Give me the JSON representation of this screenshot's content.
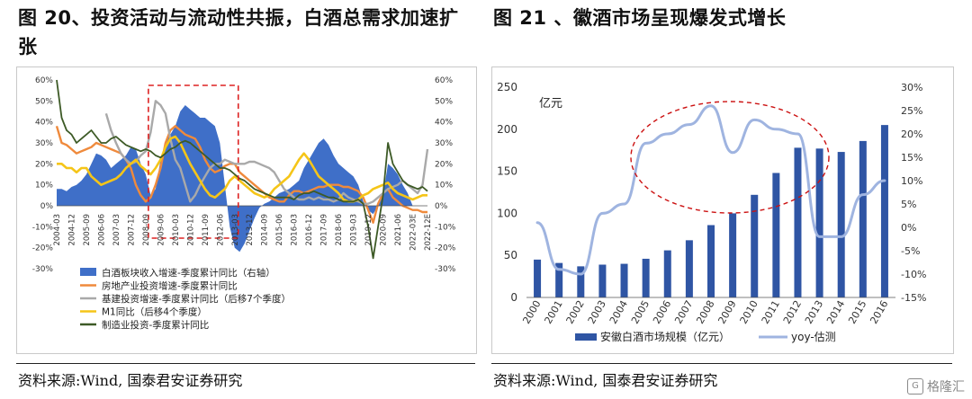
{
  "left_figure": {
    "title_line1": "图 20、投资活动与流动性共振，白酒总需求加速扩",
    "title_line2": "张",
    "source": "资料来源:Wind, 国泰君安证券研究"
  },
  "right_figure": {
    "title": "图 21 、徽酒市场呈现爆发式增长",
    "source": "资料来源:Wind, 国泰君安证券研究"
  },
  "watermark": "格隆汇",
  "chart_data": [
    {
      "type": "line",
      "left_ticks": [
        "60%",
        "50%",
        "40%",
        "30%",
        "20%",
        "10%",
        "0%",
        "-10%",
        "-20%",
        "-30%"
      ],
      "right_ticks": [
        "60%",
        "50%",
        "40%",
        "30%",
        "20%",
        "10%",
        "0%",
        "-10%",
        "-20%",
        "-30%"
      ],
      "ylim_left": [
        -0.3,
        0.6
      ],
      "ylim_right": [
        -0.3,
        0.6
      ],
      "x_labels": [
        "2004-03",
        "2004-12",
        "2005-09",
        "2006-06",
        "2007-03",
        "2007-12",
        "2008-09",
        "2009-06",
        "2010-03",
        "2010-12",
        "2011-09",
        "2012-06",
        "2013-03",
        "2013-12",
        "2014-09",
        "2015-06",
        "2016-03",
        "2016-12",
        "2017-09",
        "2018-06",
        "2019-03",
        "2019-12",
        "2020-09",
        "2021-06",
        "2022-03E",
        "2022-12E"
      ],
      "legend": [
        {
          "label": "白酒板块收入增速-季度累计同比（右轴）",
          "color": "#3f6fc8",
          "kind": "area"
        },
        {
          "label": "房地产业投资增速-季度累计同比",
          "color": "#ef8a3c",
          "kind": "line"
        },
        {
          "label": "基建投资增速-季度累计同比（后移7个季度）",
          "color": "#a9a9a9",
          "kind": "line"
        },
        {
          "label": "M1同比（后移4个季度）",
          "color": "#f5c518",
          "kind": "line"
        },
        {
          "label": "制造业投资-季度累计同比",
          "color": "#3d5a26",
          "kind": "line"
        }
      ],
      "series": [
        {
          "name": "白酒板块收入增速-季度累计同比（右轴）",
          "axis": "right",
          "values": [
            0.08,
            0.08,
            0.07,
            0.09,
            0.1,
            0.12,
            0.15,
            0.2,
            0.25,
            0.24,
            0.22,
            0.18,
            0.2,
            0.22,
            0.24,
            0.28,
            0.27,
            0.2,
            0.15,
            0.05,
            0.08,
            0.22,
            0.3,
            0.34,
            0.38,
            0.45,
            0.48,
            0.46,
            0.44,
            0.42,
            0.42,
            0.4,
            0.38,
            0.3,
            0.1,
            -0.1,
            -0.2,
            -0.22,
            -0.18,
            -0.12,
            -0.06,
            -0.01,
            0.01,
            0.02,
            0.04,
            0.06,
            0.07,
            0.08,
            0.1,
            0.12,
            0.18,
            0.22,
            0.26,
            0.3,
            0.32,
            0.29,
            0.24,
            0.2,
            0.18,
            0.16,
            0.14,
            0.1,
            0.02,
            -0.02,
            -0.04,
            0.0,
            0.05,
            0.2,
            0.18,
            0.15,
            0.1,
            0.06,
            0.0,
            0.0,
            0.0,
            0.0
          ]
        },
        {
          "name": "房地产业投资增速-季度累计同比",
          "axis": "left",
          "values": [
            0.38,
            0.3,
            0.29,
            0.27,
            0.25,
            0.26,
            0.27,
            0.28,
            0.3,
            0.29,
            0.28,
            0.27,
            0.26,
            0.25,
            0.22,
            0.18,
            0.1,
            0.05,
            0.02,
            0.04,
            0.1,
            0.18,
            0.3,
            0.36,
            0.38,
            0.36,
            0.34,
            0.33,
            0.32,
            0.28,
            0.22,
            0.18,
            0.16,
            0.17,
            0.19,
            0.2,
            0.2,
            0.16,
            0.14,
            0.12,
            0.1,
            0.08,
            0.06,
            0.04,
            0.03,
            0.02,
            0.02,
            0.05,
            0.07,
            0.07,
            0.06,
            0.07,
            0.08,
            0.09,
            0.09,
            0.1,
            0.1,
            0.1,
            0.09,
            0.09,
            0.08,
            0.07,
            0.04,
            -0.02,
            -0.08,
            0.01,
            0.06,
            0.08,
            0.04,
            0.02,
            0.0,
            -0.01,
            -0.02,
            -0.02,
            -0.03,
            -0.03
          ]
        },
        {
          "name": "基建投资增速-季度累计同比（后移7个季度）",
          "axis": "left",
          "values": [
            null,
            null,
            null,
            null,
            null,
            null,
            null,
            null,
            null,
            null,
            0.44,
            0.36,
            0.3,
            0.25,
            0.22,
            0.2,
            0.21,
            0.24,
            0.26,
            0.35,
            0.5,
            0.48,
            0.44,
            0.32,
            0.22,
            0.18,
            0.1,
            0.02,
            0.05,
            0.1,
            0.14,
            0.18,
            0.2,
            0.2,
            0.22,
            0.21,
            0.2,
            0.2,
            0.2,
            0.21,
            0.21,
            0.2,
            0.19,
            0.18,
            0.16,
            0.12,
            0.08,
            0.06,
            0.04,
            0.03,
            0.03,
            0.04,
            0.03,
            0.04,
            0.03,
            0.03,
            0.02,
            0.03,
            0.06,
            0.04,
            0.03,
            0.02,
            0.01,
            0.01,
            0.02,
            0.04,
            0.06,
            0.08,
            0.09,
            0.1,
            0.12,
            0.1,
            0.08,
            0.06,
            0.1,
            0.27
          ]
        },
        {
          "name": "M1同比（后移4个季度）",
          "axis": "left",
          "values": [
            0.2,
            0.2,
            0.18,
            0.18,
            0.16,
            0.18,
            0.18,
            0.14,
            0.12,
            0.1,
            0.11,
            0.12,
            0.13,
            0.15,
            0.18,
            0.2,
            0.22,
            0.19,
            0.17,
            0.15,
            0.18,
            0.22,
            0.28,
            0.32,
            0.33,
            0.3,
            0.25,
            0.2,
            0.16,
            0.12,
            0.08,
            0.05,
            0.04,
            0.06,
            0.08,
            0.12,
            0.14,
            0.12,
            0.1,
            0.08,
            0.06,
            0.05,
            0.04,
            0.05,
            0.08,
            0.1,
            0.12,
            0.14,
            0.18,
            0.22,
            0.25,
            0.22,
            0.18,
            0.14,
            0.12,
            0.1,
            0.08,
            0.06,
            0.03,
            0.02,
            0.02,
            0.03,
            0.05,
            0.06,
            0.08,
            0.09,
            0.1,
            0.11,
            0.08,
            0.06,
            0.05,
            0.04,
            0.03,
            0.04,
            0.05,
            0.05
          ]
        },
        {
          "name": "制造业投资-季度累计同比",
          "axis": "left",
          "values": [
            0.6,
            0.42,
            0.36,
            0.34,
            0.3,
            0.32,
            0.34,
            0.36,
            0.33,
            0.3,
            0.3,
            0.32,
            0.33,
            0.31,
            0.29,
            0.28,
            0.27,
            0.26,
            0.27,
            0.26,
            0.24,
            0.23,
            0.25,
            0.27,
            0.28,
            0.3,
            0.31,
            0.3,
            0.28,
            0.26,
            0.24,
            0.22,
            0.2,
            0.18,
            0.18,
            0.17,
            0.15,
            0.13,
            0.12,
            0.1,
            0.08,
            0.07,
            0.06,
            0.05,
            0.04,
            0.04,
            0.04,
            0.04,
            0.03,
            0.05,
            0.06,
            0.06,
            0.07,
            0.06,
            0.05,
            0.04,
            0.04,
            0.03,
            0.02,
            0.02,
            0.02,
            0.03,
            0.01,
            -0.1,
            -0.25,
            -0.1,
            0.05,
            0.3,
            0.2,
            0.16,
            0.12,
            0.1,
            0.09,
            0.08,
            0.09,
            0.07
          ]
        }
      ]
    },
    {
      "type": "bar",
      "ylabel": "亿元",
      "left_ticks": [
        "250",
        "200",
        "150",
        "100",
        "50",
        "0"
      ],
      "right_ticks": [
        "30%",
        "25%",
        "20%",
        "15%",
        "10%",
        "5%",
        "0%",
        "-5%",
        "-10%",
        "-15%"
      ],
      "ylim": [
        0,
        250
      ],
      "ylim_right": [
        -0.15,
        0.3
      ],
      "categories": [
        "2000",
        "2001",
        "2002",
        "2003",
        "2004",
        "2005",
        "2006",
        "2007",
        "2008",
        "2009",
        "2010",
        "2011",
        "2012",
        "2013",
        "2014",
        "2015",
        "2016"
      ],
      "legend": [
        {
          "label": "安徽白酒市场规模（亿元）",
          "color": "#2f55a4",
          "kind": "bar"
        },
        {
          "label": "yoy-估测",
          "color": "#9fb4e0",
          "kind": "line"
        }
      ],
      "series": [
        {
          "name": "安徽白酒市场规模（亿元）",
          "values": [
            45,
            41,
            37,
            39,
            40,
            46,
            56,
            68,
            86,
            100,
            122,
            148,
            178,
            177,
            173,
            186,
            205
          ]
        },
        {
          "name": "yoy-估测",
          "values": [
            0.01,
            -0.09,
            -0.1,
            0.03,
            0.05,
            0.18,
            0.2,
            0.22,
            0.26,
            0.16,
            0.23,
            0.21,
            0.2,
            -0.02,
            -0.02,
            0.07,
            0.1
          ]
        }
      ]
    }
  ]
}
